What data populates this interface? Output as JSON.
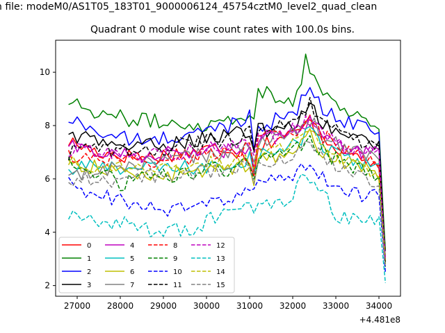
{
  "figure": {
    "suptitle": "n file: modeM0/AS1T05_183T01_9000006124_45754cztM0_level2_quad_clean",
    "title": "Quadrant 0 module wise count rates with 100.0s bins."
  },
  "chart_data": {
    "type": "line",
    "title": "Quadrant 0 module wise count rates with 100.0s bins.",
    "xlabel": "",
    "ylabel": "",
    "x_offset_label": "+4.481e8",
    "x_offset": 448100000,
    "xlim": [
      26500,
      34500
    ],
    "ylim": [
      1.6,
      11.2
    ],
    "x_ticks": [
      27000,
      28000,
      29000,
      30000,
      31000,
      32000,
      33000,
      34000
    ],
    "x_tick_labels": [
      "27000",
      "28000",
      "29000",
      "30000",
      "31000",
      "32000",
      "33000",
      "34000"
    ],
    "y_ticks": [
      2,
      4,
      6,
      8,
      10
    ],
    "y_tick_labels": [
      "2",
      "4",
      "6",
      "8",
      "10"
    ],
    "grid": false,
    "legend": {
      "location": "lower-left",
      "columns": 4
    },
    "x_range": [
      26800,
      34150
    ],
    "x_step": 100,
    "x_note": "x = 26800, 26900, ... 34100, 34150 relative to +4.481e8",
    "series": [
      {
        "name": "0",
        "color": "#ff0000",
        "dash": "solid",
        "anchors": [
          [
            26800,
            7.4
          ],
          [
            27500,
            7.0
          ],
          [
            28500,
            6.8
          ],
          [
            29500,
            7.0
          ],
          [
            30500,
            7.2
          ],
          [
            31000,
            6.8
          ],
          [
            31050,
            5.3
          ],
          [
            31150,
            7.2
          ],
          [
            31600,
            7.5
          ],
          [
            32100,
            7.7
          ],
          [
            32400,
            8.2
          ],
          [
            32700,
            7.6
          ],
          [
            33200,
            7.0
          ],
          [
            33700,
            6.7
          ],
          [
            34000,
            6.5
          ],
          [
            34150,
            3.3
          ]
        ]
      },
      {
        "name": "1",
        "color": "#008000",
        "dash": "solid",
        "anchors": [
          [
            26800,
            8.9
          ],
          [
            26900,
            9.1
          ],
          [
            27100,
            8.7
          ],
          [
            27500,
            8.5
          ],
          [
            28000,
            8.3
          ],
          [
            28500,
            8.2
          ],
          [
            29000,
            8.1
          ],
          [
            29500,
            8.1
          ],
          [
            30000,
            8.0
          ],
          [
            30500,
            8.3
          ],
          [
            31000,
            8.4
          ],
          [
            31050,
            7.1
          ],
          [
            31150,
            9.1
          ],
          [
            31400,
            9.4
          ],
          [
            31700,
            8.9
          ],
          [
            32000,
            8.9
          ],
          [
            32200,
            9.7
          ],
          [
            32300,
            10.7
          ],
          [
            32500,
            9.8
          ],
          [
            32700,
            9.2
          ],
          [
            33000,
            8.8
          ],
          [
            33500,
            8.4
          ],
          [
            34000,
            7.9
          ],
          [
            34150,
            3.3
          ]
        ]
      },
      {
        "name": "2",
        "color": "#0000ff",
        "dash": "solid",
        "anchors": [
          [
            26800,
            8.2
          ],
          [
            27200,
            8.0
          ],
          [
            27800,
            7.6
          ],
          [
            28500,
            7.4
          ],
          [
            29500,
            7.6
          ],
          [
            30500,
            8.0
          ],
          [
            31000,
            8.4
          ],
          [
            31050,
            6.5
          ],
          [
            31150,
            8.0
          ],
          [
            31600,
            8.2
          ],
          [
            32100,
            8.5
          ],
          [
            32400,
            9.6
          ],
          [
            32700,
            8.5
          ],
          [
            33200,
            8.2
          ],
          [
            33700,
            8.0
          ],
          [
            34000,
            7.7
          ],
          [
            34150,
            2.9
          ]
        ]
      },
      {
        "name": "3",
        "color": "#000000",
        "dash": "solid",
        "anchors": [
          [
            26800,
            7.7
          ],
          [
            27200,
            7.5
          ],
          [
            27800,
            7.3
          ],
          [
            28500,
            7.2
          ],
          [
            29500,
            7.4
          ],
          [
            30500,
            7.7
          ],
          [
            31000,
            7.8
          ],
          [
            31050,
            6.1
          ],
          [
            31150,
            7.8
          ],
          [
            31600,
            7.8
          ],
          [
            32100,
            8.2
          ],
          [
            32400,
            8.9
          ],
          [
            32700,
            8.0
          ],
          [
            33200,
            7.6
          ],
          [
            33700,
            7.4
          ],
          [
            34000,
            7.3
          ],
          [
            34150,
            2.9
          ]
        ]
      },
      {
        "name": "4",
        "color": "#bf00bf",
        "dash": "solid",
        "anchors": [
          [
            26800,
            7.2
          ],
          [
            27500,
            7.0
          ],
          [
            28500,
            6.9
          ],
          [
            29500,
            7.0
          ],
          [
            30500,
            7.1
          ],
          [
            31000,
            7.2
          ],
          [
            31050,
            5.9
          ],
          [
            31150,
            7.3
          ],
          [
            31600,
            7.6
          ],
          [
            32100,
            7.8
          ],
          [
            32400,
            8.3
          ],
          [
            32700,
            7.7
          ],
          [
            33200,
            7.2
          ],
          [
            33700,
            7.0
          ],
          [
            34000,
            6.9
          ],
          [
            34150,
            3.0
          ]
        ]
      },
      {
        "name": "5",
        "color": "#00bfbf",
        "dash": "solid",
        "anchors": [
          [
            26800,
            6.3
          ],
          [
            27500,
            6.5
          ],
          [
            28500,
            6.4
          ],
          [
            29500,
            6.4
          ],
          [
            30500,
            6.5
          ],
          [
            31000,
            6.8
          ],
          [
            31050,
            5.4
          ],
          [
            31150,
            6.9
          ],
          [
            31600,
            7.0
          ],
          [
            32100,
            7.3
          ],
          [
            32400,
            7.8
          ],
          [
            32700,
            7.2
          ],
          [
            33200,
            6.8
          ],
          [
            33700,
            6.5
          ],
          [
            34000,
            6.3
          ],
          [
            34150,
            2.9
          ]
        ]
      },
      {
        "name": "6",
        "color": "#bfbf00",
        "dash": "solid",
        "anchors": [
          [
            26800,
            6.6
          ],
          [
            27500,
            6.4
          ],
          [
            28500,
            6.1
          ],
          [
            29500,
            6.2
          ],
          [
            30500,
            6.4
          ],
          [
            31000,
            6.6
          ],
          [
            31050,
            5.3
          ],
          [
            31150,
            6.7
          ],
          [
            31600,
            6.8
          ],
          [
            32100,
            7.1
          ],
          [
            32400,
            7.6
          ],
          [
            32700,
            7.0
          ],
          [
            33200,
            6.6
          ],
          [
            33700,
            6.3
          ],
          [
            34000,
            6.2
          ],
          [
            34150,
            2.8
          ]
        ]
      },
      {
        "name": "7",
        "color": "#808080",
        "dash": "solid",
        "anchors": [
          [
            26800,
            6.0
          ],
          [
            27500,
            6.3
          ],
          [
            28500,
            6.6
          ],
          [
            29500,
            6.8
          ],
          [
            30500,
            7.0
          ],
          [
            31000,
            7.1
          ],
          [
            31050,
            5.8
          ],
          [
            31150,
            7.4
          ],
          [
            31600,
            7.5
          ],
          [
            32100,
            7.8
          ],
          [
            32400,
            8.2
          ],
          [
            32700,
            7.6
          ],
          [
            33200,
            7.2
          ],
          [
            33700,
            7.0
          ],
          [
            34000,
            6.9
          ],
          [
            34150,
            2.8
          ]
        ]
      },
      {
        "name": "8",
        "color": "#ff0000",
        "dash": "dashed",
        "anchors": [
          [
            26800,
            6.9
          ],
          [
            27500,
            6.8
          ],
          [
            28500,
            6.7
          ],
          [
            29500,
            6.8
          ],
          [
            30500,
            7.0
          ],
          [
            31000,
            7.1
          ],
          [
            31050,
            5.6
          ],
          [
            31150,
            7.5
          ],
          [
            31600,
            7.6
          ],
          [
            32100,
            7.9
          ],
          [
            32400,
            8.3
          ],
          [
            32700,
            7.6
          ],
          [
            33200,
            7.1
          ],
          [
            33700,
            6.8
          ],
          [
            34000,
            6.6
          ],
          [
            34150,
            2.9
          ]
        ]
      },
      {
        "name": "9",
        "color": "#008000",
        "dash": "dashed",
        "anchors": [
          [
            26800,
            6.6
          ],
          [
            27500,
            6.2
          ],
          [
            28000,
            5.8
          ],
          [
            28500,
            6.0
          ],
          [
            29000,
            6.1
          ],
          [
            29500,
            6.2
          ],
          [
            30500,
            6.4
          ],
          [
            31000,
            6.6
          ],
          [
            31050,
            5.2
          ],
          [
            31150,
            6.8
          ],
          [
            31600,
            6.9
          ],
          [
            32100,
            7.2
          ],
          [
            32400,
            7.6
          ],
          [
            32700,
            7.0
          ],
          [
            33200,
            6.6
          ],
          [
            33700,
            6.3
          ],
          [
            34000,
            6.1
          ],
          [
            34150,
            2.7
          ]
        ]
      },
      {
        "name": "10",
        "color": "#0000ff",
        "dash": "dashed",
        "anchors": [
          [
            26800,
            5.8
          ],
          [
            27200,
            5.5
          ],
          [
            27800,
            5.3
          ],
          [
            28500,
            5.0
          ],
          [
            29000,
            4.8
          ],
          [
            29500,
            4.9
          ],
          [
            30000,
            5.0
          ],
          [
            30500,
            5.2
          ],
          [
            31000,
            5.5
          ],
          [
            31050,
            4.9
          ],
          [
            31150,
            5.8
          ],
          [
            31600,
            6.0
          ],
          [
            32000,
            6.2
          ],
          [
            32300,
            6.5
          ],
          [
            32700,
            6.0
          ],
          [
            33200,
            5.6
          ],
          [
            33700,
            5.4
          ],
          [
            34000,
            5.3
          ],
          [
            34150,
            2.5
          ]
        ]
      },
      {
        "name": "11",
        "color": "#000000",
        "dash": "dashed",
        "anchors": [
          [
            26800,
            7.0
          ],
          [
            27500,
            7.1
          ],
          [
            28500,
            7.0
          ],
          [
            29500,
            7.3
          ],
          [
            30500,
            7.5
          ],
          [
            31000,
            7.7
          ],
          [
            31050,
            6.2
          ],
          [
            31150,
            7.9
          ],
          [
            31600,
            8.0
          ],
          [
            32100,
            8.3
          ],
          [
            32400,
            8.8
          ],
          [
            32700,
            8.0
          ],
          [
            33200,
            7.6
          ],
          [
            33700,
            7.3
          ],
          [
            34000,
            7.1
          ],
          [
            34150,
            2.9
          ]
        ]
      },
      {
        "name": "12",
        "color": "#bf00bf",
        "dash": "dashed",
        "anchors": [
          [
            26800,
            7.1
          ],
          [
            27500,
            7.0
          ],
          [
            28500,
            6.9
          ],
          [
            29500,
            7.0
          ],
          [
            30500,
            7.2
          ],
          [
            31000,
            7.3
          ],
          [
            31050,
            5.8
          ],
          [
            31150,
            7.5
          ],
          [
            31600,
            7.6
          ],
          [
            32100,
            7.9
          ],
          [
            32400,
            8.2
          ],
          [
            32700,
            7.6
          ],
          [
            33200,
            7.2
          ],
          [
            33700,
            7.0
          ],
          [
            34000,
            6.9
          ],
          [
            34150,
            3.0
          ]
        ]
      },
      {
        "name": "13",
        "color": "#00bfbf",
        "dash": "dashed",
        "anchors": [
          [
            26800,
            4.7
          ],
          [
            27000,
            4.9
          ],
          [
            27300,
            4.4
          ],
          [
            27600,
            4.2
          ],
          [
            28000,
            4.4
          ],
          [
            28500,
            4.3
          ],
          [
            28800,
            3.9
          ],
          [
            29200,
            4.1
          ],
          [
            29600,
            4.1
          ],
          [
            30000,
            4.4
          ],
          [
            30500,
            4.7
          ],
          [
            31000,
            5.0
          ],
          [
            31050,
            4.4
          ],
          [
            31150,
            5.2
          ],
          [
            31600,
            5.0
          ],
          [
            32000,
            5.3
          ],
          [
            32200,
            5.9
          ],
          [
            32500,
            6.0
          ],
          [
            32700,
            5.4
          ],
          [
            33000,
            4.7
          ],
          [
            33500,
            4.4
          ],
          [
            34000,
            4.3
          ],
          [
            34150,
            2.1
          ]
        ]
      },
      {
        "name": "14",
        "color": "#bfbf00",
        "dash": "dashed",
        "anchors": [
          [
            26800,
            6.7
          ],
          [
            27500,
            6.5
          ],
          [
            28500,
            6.3
          ],
          [
            29500,
            6.5
          ],
          [
            30500,
            6.6
          ],
          [
            31000,
            6.8
          ],
          [
            31050,
            5.4
          ],
          [
            31150,
            7.0
          ],
          [
            31600,
            7.1
          ],
          [
            32100,
            7.4
          ],
          [
            32400,
            7.8
          ],
          [
            32700,
            7.1
          ],
          [
            33200,
            6.7
          ],
          [
            33700,
            6.4
          ],
          [
            34000,
            6.3
          ],
          [
            34150,
            2.8
          ]
        ]
      },
      {
        "name": "15",
        "color": "#808080",
        "dash": "dashed",
        "anchors": [
          [
            26800,
            6.0
          ],
          [
            27200,
            6.0
          ],
          [
            27800,
            5.8
          ],
          [
            28500,
            6.1
          ],
          [
            29500,
            6.2
          ],
          [
            30500,
            6.4
          ],
          [
            31000,
            6.5
          ],
          [
            31050,
            5.2
          ],
          [
            31150,
            6.7
          ],
          [
            31600,
            6.6
          ],
          [
            32000,
            6.9
          ],
          [
            32300,
            7.4
          ],
          [
            32700,
            6.8
          ],
          [
            33200,
            6.3
          ],
          [
            33700,
            6.0
          ],
          [
            34000,
            5.9
          ],
          [
            34150,
            2.7
          ]
        ]
      }
    ]
  }
}
